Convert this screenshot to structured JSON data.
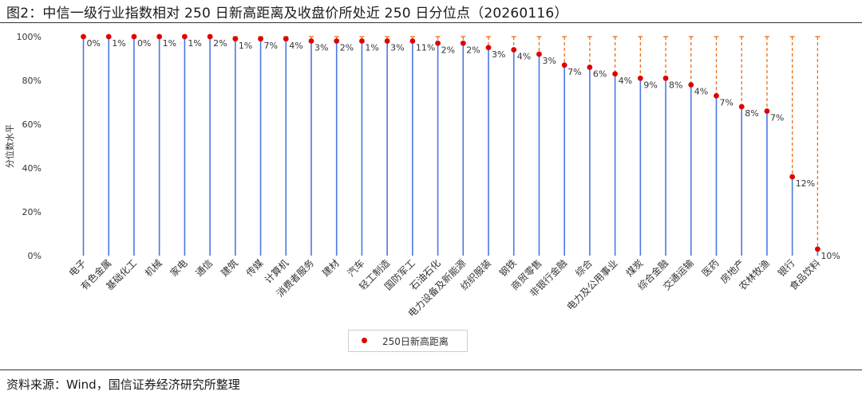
{
  "title": "图2：中信一级行业指数相对 250 日新高距离及收盘价所处近 250 日分位点（20260116）",
  "source": "资料来源：Wind，国信证券经济研究所整理",
  "colors": {
    "high_point": "#e00000",
    "drop_line": "#e8701a",
    "percentile_bar": "#4a78e0",
    "label_text": "#333333"
  },
  "chart_data": {
    "type": "lollipop",
    "ylabel": "分位数水平",
    "ylim": [
      0,
      100
    ],
    "yticks": [
      "0%",
      "20%",
      "40%",
      "60%",
      "80%",
      "100%"
    ],
    "legend": {
      "label": "250日新高距离",
      "position": "bottom-center"
    },
    "categories": [
      "电子",
      "有色金属",
      "基础化工",
      "机械",
      "家电",
      "通信",
      "建筑",
      "传媒",
      "计算机",
      "消费者服务",
      "建材",
      "汽车",
      "轻工制造",
      "国防军工",
      "石油石化",
      "电力设备及新能源",
      "纺织服装",
      "钢铁",
      "商贸零售",
      "非银行金融",
      "综合",
      "电力及公用事业",
      "煤炭",
      "综合金融",
      "交通运输",
      "医药",
      "房地产",
      "农林牧渔",
      "银行",
      "食品饮料"
    ],
    "values": [
      100,
      100,
      100,
      100,
      100,
      100,
      99,
      99,
      99,
      98,
      98,
      98,
      98,
      98,
      97,
      97,
      95,
      94,
      92,
      87,
      86,
      83,
      81,
      81,
      78,
      73,
      68,
      66,
      36,
      3
    ],
    "gap_labels": [
      "0%",
      "1%",
      "0%",
      "1%",
      "1%",
      "2%",
      "1%",
      "7%",
      "4%",
      "3%",
      "2%",
      "1%",
      "3%",
      "11%",
      "2%",
      "2%",
      "3%",
      "4%",
      "3%",
      "7%",
      "6%",
      "4%",
      "9%",
      "8%",
      "4%",
      "7%",
      "8%",
      "7%",
      "12%",
      "10%"
    ]
  }
}
